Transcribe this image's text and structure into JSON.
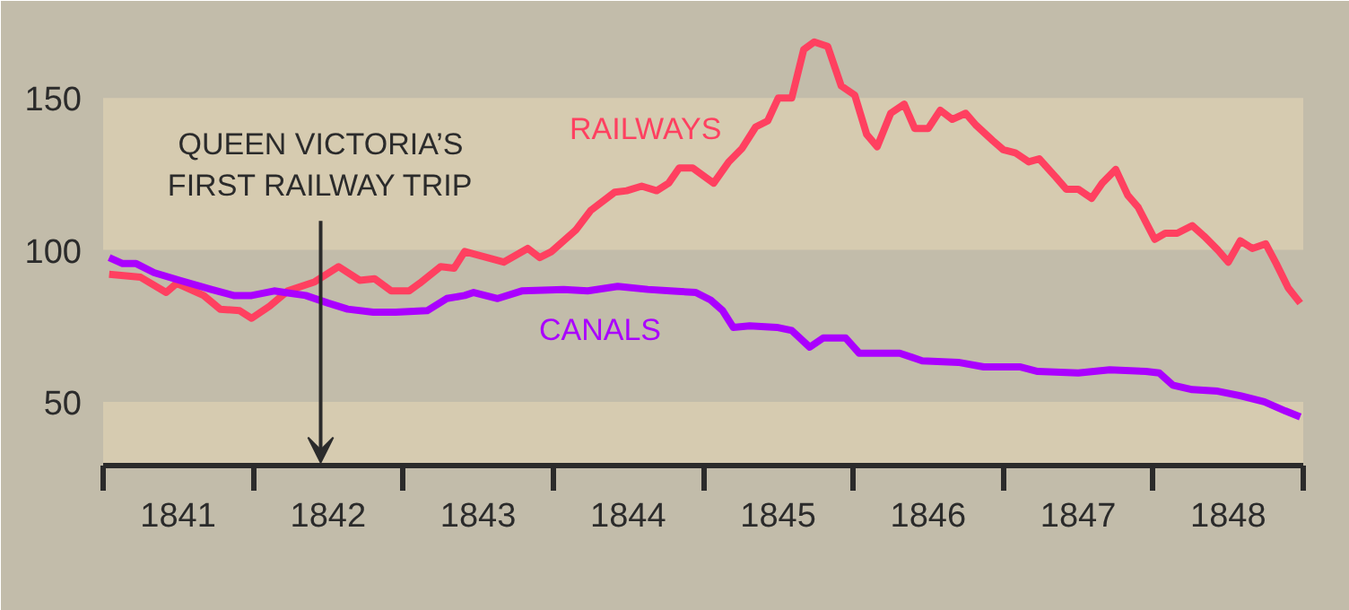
{
  "chart_data": {
    "type": "line",
    "xlim": [
      1841,
      1849
    ],
    "ylim": [
      29,
      182
    ],
    "xticks": [
      {
        "value": 1841,
        "label": null
      },
      {
        "value": 1841.5,
        "label": "1841"
      },
      {
        "value": 1842,
        "label": null
      },
      {
        "value": 1842.5,
        "label": "1842"
      },
      {
        "value": 1843,
        "label": null
      },
      {
        "value": 1843.5,
        "label": "1843"
      },
      {
        "value": 1844,
        "label": null
      },
      {
        "value": 1844.5,
        "label": "1844"
      },
      {
        "value": 1845,
        "label": null
      },
      {
        "value": 1845.5,
        "label": "1845"
      },
      {
        "value": 1846,
        "label": null
      },
      {
        "value": 1846.5,
        "label": "1846"
      },
      {
        "value": 1847,
        "label": null
      },
      {
        "value": 1847.5,
        "label": "1847"
      },
      {
        "value": 1848,
        "label": null
      },
      {
        "value": 1848.5,
        "label": "1848"
      },
      {
        "value": 1849,
        "label": null
      }
    ],
    "yticks": [
      50,
      100,
      150
    ],
    "grid": false,
    "marker": "none",
    "line_style": "solid",
    "bands": [
      {
        "axis": "y",
        "from": 100,
        "to": 150,
        "color": "#d6cbb0"
      },
      {
        "axis": "y",
        "from": 29,
        "to": 50,
        "color": "#d6cbb0"
      }
    ],
    "annotations": [
      {
        "text": "QUEEN VICTORIA’S\nFIRST RAILWAY TRIP",
        "x": 1842.45,
        "y": 30
      }
    ],
    "series": [
      {
        "name": "RAILWAYS",
        "color": "#ff4060",
        "x": [
          1841.04,
          1841.25,
          1841.42,
          1841.49,
          1841.67,
          1841.78,
          1841.91,
          1841.99,
          1842.11,
          1842.23,
          1842.41,
          1842.57,
          1842.71,
          1842.81,
          1842.92,
          1843.04,
          1843.11,
          1843.25,
          1843.34,
          1843.41,
          1843.67,
          1843.83,
          1843.91,
          1843.99,
          1844.15,
          1844.25,
          1844.41,
          1844.49,
          1844.59,
          1844.69,
          1844.77,
          1844.84,
          1844.93,
          1845.07,
          1845.17,
          1845.26,
          1845.35,
          1845.43,
          1845.5,
          1845.59,
          1845.67,
          1845.74,
          1845.83,
          1845.92,
          1846.01,
          1846.09,
          1846.16,
          1846.25,
          1846.34,
          1846.41,
          1846.5,
          1846.58,
          1846.66,
          1846.75,
          1846.82,
          1846.93,
          1847.0,
          1847.08,
          1847.17,
          1847.24,
          1847.35,
          1847.42,
          1847.5,
          1847.59,
          1847.66,
          1847.75,
          1847.83,
          1847.9,
          1848.01,
          1848.08,
          1848.16,
          1848.26,
          1848.34,
          1848.43,
          1848.5,
          1848.58,
          1848.66,
          1848.75,
          1848.82,
          1848.9,
          1848.98
        ],
        "values": [
          92,
          91,
          86,
          89,
          85,
          80.5,
          80,
          77.5,
          81.5,
          86.5,
          89.5,
          94.5,
          90,
          90.5,
          86.5,
          86.5,
          89,
          94.5,
          94,
          99.5,
          96,
          100.5,
          97.5,
          99.5,
          106.5,
          113,
          119,
          119.5,
          121,
          119.5,
          122,
          127,
          127,
          122,
          129,
          133.5,
          140.5,
          142.5,
          150,
          150,
          166,
          168.5,
          167,
          154,
          151,
          138,
          134,
          145,
          148,
          140,
          140,
          146,
          143,
          145,
          141,
          136,
          133,
          132,
          129,
          130,
          124,
          120,
          120,
          117,
          122,
          126.5,
          118,
          114,
          103.5,
          105.5,
          105.5,
          108,
          104.5,
          100,
          96,
          103,
          100.5,
          102,
          95.5,
          87.5,
          82.5
        ]
      },
      {
        "name": "CANALS",
        "color": "#aa00ff",
        "x": [
          1841.04,
          1841.13,
          1841.22,
          1841.34,
          1841.51,
          1841.72,
          1841.87,
          1841.99,
          1842.14,
          1842.21,
          1842.35,
          1842.5,
          1842.63,
          1842.8,
          1842.95,
          1843.16,
          1843.29,
          1843.41,
          1843.47,
          1843.63,
          1843.79,
          1844.07,
          1844.23,
          1844.43,
          1844.63,
          1844.78,
          1844.95,
          1845.05,
          1845.13,
          1845.2,
          1845.31,
          1845.49,
          1845.59,
          1845.71,
          1845.8,
          1845.95,
          1846.04,
          1846.16,
          1846.31,
          1846.46,
          1846.7,
          1846.87,
          1847.11,
          1847.23,
          1847.5,
          1847.71,
          1847.95,
          1848.04,
          1848.13,
          1848.26,
          1848.43,
          1848.58,
          1848.74,
          1848.88,
          1848.98
        ],
        "values": [
          97.5,
          95.5,
          95.5,
          92.5,
          90,
          87,
          85,
          85,
          86.5,
          86,
          85,
          82.5,
          80.5,
          79.5,
          79.5,
          80,
          84,
          85,
          86,
          84,
          86.5,
          87,
          86.5,
          88,
          87,
          86.5,
          86,
          83.5,
          80,
          74.5,
          75,
          74.5,
          73.5,
          68,
          71,
          71,
          66,
          66,
          66,
          63.5,
          63,
          61.5,
          61.5,
          60,
          59.5,
          60.5,
          60,
          59.5,
          55.5,
          54,
          53.5,
          52,
          50,
          47,
          45
        ]
      }
    ]
  }
}
